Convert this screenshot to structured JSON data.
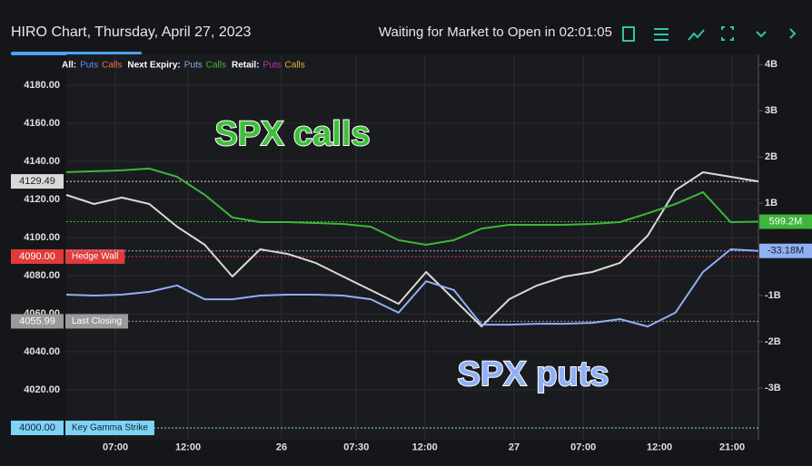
{
  "header": {
    "title": "HIRO Chart, Thursday, April 27, 2023",
    "status": "Waiting for Market to Open in 02:01:05"
  },
  "legend": {
    "groups": [
      {
        "label": "All:",
        "puts": "Puts",
        "calls": "Calls",
        "puts_color": "#5b8def",
        "calls_color": "#e8734a"
      },
      {
        "label": "Next Expiry:",
        "puts": "Puts",
        "calls": "Calls",
        "puts_color": "#8fb0f5",
        "calls_color": "#3fb53a"
      },
      {
        "label": "Retail:",
        "puts": "Puts",
        "calls": "Calls",
        "puts_color": "#c02fbf",
        "calls_color": "#e0b43a"
      }
    ]
  },
  "chart_data": {
    "type": "line",
    "annotations": [
      {
        "text": "SPX calls",
        "color": "#3fbf3a"
      },
      {
        "text": "SPX puts",
        "color": "#8fb0f5"
      }
    ],
    "x": [
      0,
      4,
      8,
      12,
      16,
      20,
      24,
      28,
      32,
      36,
      40,
      44,
      48,
      52,
      56,
      60,
      64,
      68,
      72,
      76,
      80,
      84,
      88,
      92,
      96,
      100
    ],
    "xlim": [
      0,
      100
    ],
    "xticks": [
      {
        "value": 7.1,
        "label": "07:00"
      },
      {
        "value": 17.6,
        "label": "12:00"
      },
      {
        "value": 31.1,
        "label": "26"
      },
      {
        "value": 41.9,
        "label": "07:30"
      },
      {
        "value": 51.8,
        "label": "12:00"
      },
      {
        "value": 64.7,
        "label": "27"
      },
      {
        "value": 74.7,
        "label": "07:00"
      },
      {
        "value": 85.7,
        "label": "12:00"
      },
      {
        "value": 96.2,
        "label": "21:00"
      }
    ],
    "ylim": [
      3993.8,
      4196.2
    ],
    "yticks": [
      {
        "value": 4020,
        "label": "4020.00"
      },
      {
        "value": 4040,
        "label": "4040.00"
      },
      {
        "value": 4060,
        "label": "4060.00"
      },
      {
        "value": 4080,
        "label": "4080.00"
      },
      {
        "value": 4100,
        "label": "4100.00"
      },
      {
        "value": 4120,
        "label": "4120.00"
      },
      {
        "value": 4140,
        "label": "4140.00"
      },
      {
        "value": 4160,
        "label": "4160.00"
      },
      {
        "value": 4180,
        "label": "4180.00"
      }
    ],
    "y2lim": [
      -4.12,
      4.22
    ],
    "y2ticks": [
      {
        "value": 4,
        "label": "4B"
      },
      {
        "value": 3,
        "label": "3B"
      },
      {
        "value": 2,
        "label": "2B"
      },
      {
        "value": 1,
        "label": "1B"
      },
      {
        "value": -1,
        "label": "-1B"
      },
      {
        "value": -2,
        "label": "-2B"
      },
      {
        "value": -3,
        "label": "-3B"
      }
    ],
    "grid": true,
    "series": [
      {
        "color": "#d9d9d9",
        "values": [
          4122.4,
          4117.6,
          4121,
          4117.6,
          4105.7,
          4096.2,
          4079.5,
          4093.8,
          4091.4,
          4086.7,
          4079.5,
          4072.4,
          4065.2,
          4081.9,
          4067.6,
          4053.3,
          4067.6,
          4074.8,
          4079.5,
          4081.9,
          4086.7,
          4101,
          4124.8,
          4134.3,
          4131.9,
          4129.49
        ],
        "end_label": "4129.49"
      },
      {
        "color": "#3fb53a",
        "axis": "y2",
        "values": [
          1.67,
          1.69,
          1.71,
          1.75,
          1.57,
          1.18,
          0.69,
          0.59,
          0.59,
          0.57,
          0.55,
          0.49,
          0.2,
          0.1,
          0.2,
          0.45,
          0.53,
          0.53,
          0.53,
          0.55,
          0.59,
          0.78,
          0.98,
          1.24,
          0.59,
          0.5992
        ],
        "end_label": "599.2M"
      },
      {
        "color": "#8fb0f5",
        "axis": "y2",
        "values": [
          -0.98,
          -1,
          -0.98,
          -0.92,
          -0.78,
          -1.08,
          -1.08,
          -1,
          -0.98,
          -0.98,
          -1,
          -1.08,
          -1.37,
          -0.69,
          -0.88,
          -1.63,
          -1.63,
          -1.61,
          -1.61,
          -1.59,
          -1.51,
          -1.67,
          -1.37,
          -0.49,
          0,
          -0.03318
        ],
        "end_label": "-33.18M"
      }
    ],
    "levels": [
      {
        "value": 4090,
        "label": "4090.00",
        "name": "Hedge Wall",
        "color": "#e03a3a"
      },
      {
        "value": 4055.99,
        "label": "4055.99",
        "name": "Last Closing",
        "color": "#9a9a9a"
      },
      {
        "value": 4000,
        "label": "4000.00",
        "name": "Key Gamma Strike",
        "color": "#7fd3f5"
      }
    ]
  }
}
